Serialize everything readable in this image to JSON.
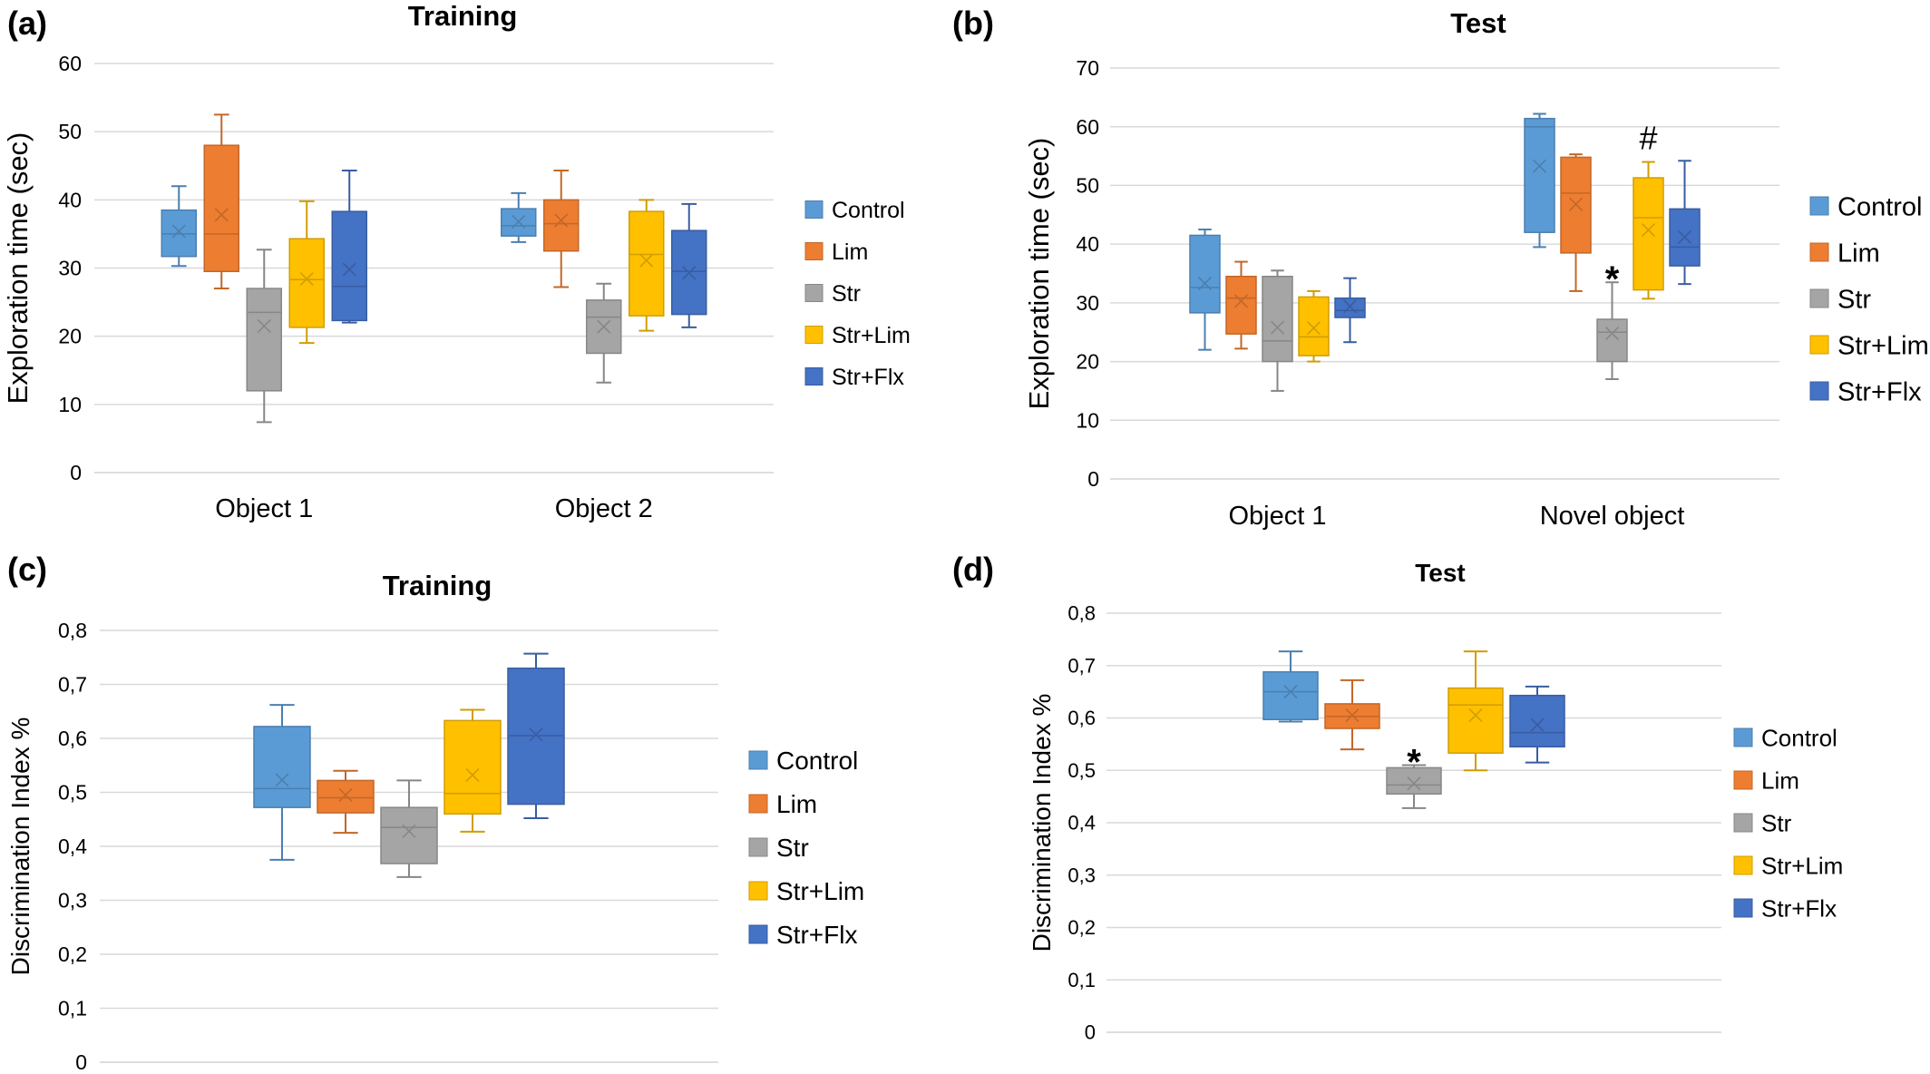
{
  "colors": {
    "Control": "#5b9bd5",
    "Lim": "#ed7d31",
    "Str": "#a5a5a5",
    "Str+Lim": "#ffc000",
    "Str+Flx": "#4472c4"
  },
  "chart_data": [
    {
      "type": "box",
      "panel_label": "(a)",
      "title": "Training",
      "ylabel": "Exploration time (sec)",
      "ylim": [
        0,
        60
      ],
      "yticks": [
        "0",
        "10",
        "20",
        "30",
        "40",
        "50",
        "60"
      ],
      "categories": [
        "Object 1",
        "Object 2"
      ],
      "legend": [
        "Control",
        "Lim",
        "Str",
        "Str+Lim",
        "Str+Flx"
      ],
      "legend_position": "right",
      "series": [
        {
          "name": "Control",
          "boxes": [
            {
              "min": 30.3,
              "q1": 31.7,
              "median": 35.0,
              "q3": 38.5,
              "max": 42.0,
              "mean": 35.4
            },
            {
              "min": 33.8,
              "q1": 34.7,
              "median": 36.2,
              "q3": 38.7,
              "max": 41.0,
              "mean": 36.8
            }
          ]
        },
        {
          "name": "Lim",
          "boxes": [
            {
              "min": 27.0,
              "q1": 29.5,
              "median": 35.0,
              "q3": 48.0,
              "max": 52.5,
              "mean": 37.8
            },
            {
              "min": 27.2,
              "q1": 32.5,
              "median": 36.5,
              "q3": 40.0,
              "max": 44.3,
              "mean": 37.0
            }
          ]
        },
        {
          "name": "Str",
          "boxes": [
            {
              "min": 7.4,
              "q1": 12.0,
              "median": 23.5,
              "q3": 27.0,
              "max": 32.7,
              "mean": 21.5
            },
            {
              "min": 13.2,
              "q1": 17.5,
              "median": 22.8,
              "q3": 25.3,
              "max": 27.7,
              "mean": 21.4
            }
          ]
        },
        {
          "name": "Str+Lim",
          "boxes": [
            {
              "min": 19.0,
              "q1": 21.3,
              "median": 28.3,
              "q3": 34.3,
              "max": 39.8,
              "mean": 28.4
            },
            {
              "min": 20.8,
              "q1": 23.0,
              "median": 32.0,
              "q3": 38.3,
              "max": 40.0,
              "mean": 31.1
            }
          ]
        },
        {
          "name": "Str+Flx",
          "boxes": [
            {
              "min": 22.0,
              "q1": 22.3,
              "median": 27.3,
              "q3": 38.3,
              "max": 44.3,
              "mean": 29.8
            },
            {
              "min": 21.3,
              "q1": 23.2,
              "median": 29.5,
              "q3": 35.5,
              "max": 39.4,
              "mean": 29.3
            }
          ]
        }
      ],
      "annotations": []
    },
    {
      "type": "box",
      "panel_label": "(b)",
      "title": "Test",
      "ylabel": "Exploration time (sec)",
      "ylim": [
        0,
        70
      ],
      "yticks": [
        "0",
        "10",
        "20",
        "30",
        "40",
        "50",
        "60",
        "70"
      ],
      "categories": [
        "Object 1",
        "Novel object"
      ],
      "legend": [
        "Control",
        "Lim",
        "Str",
        "Str+Lim",
        "Str+Flx"
      ],
      "legend_position": "right",
      "series": [
        {
          "name": "Control",
          "boxes": [
            {
              "min": 22.0,
              "q1": 28.3,
              "median": 32.6,
              "q3": 41.5,
              "max": 42.5,
              "mean": 33.3
            },
            {
              "min": 39.5,
              "q1": 42.0,
              "median": 60.0,
              "q3": 61.4,
              "max": 62.2,
              "mean": 53.3
            }
          ]
        },
        {
          "name": "Lim",
          "boxes": [
            {
              "min": 22.2,
              "q1": 24.7,
              "median": 30.8,
              "q3": 34.5,
              "max": 37.0,
              "mean": 30.3
            },
            {
              "min": 32.0,
              "q1": 38.5,
              "median": 48.7,
              "q3": 54.8,
              "max": 55.3,
              "mean": 46.8
            }
          ]
        },
        {
          "name": "Str",
          "boxes": [
            {
              "min": 15.0,
              "q1": 20.0,
              "median": 23.5,
              "q3": 34.5,
              "max": 35.5,
              "mean": 25.8
            },
            {
              "min": 17.0,
              "q1": 20.0,
              "median": 25.0,
              "q3": 27.2,
              "max": 33.5,
              "mean": 24.8
            }
          ]
        },
        {
          "name": "Str+Lim",
          "boxes": [
            {
              "min": 20.0,
              "q1": 21.0,
              "median": 24.2,
              "q3": 31.0,
              "max": 32.0,
              "mean": 25.7
            },
            {
              "min": 30.7,
              "q1": 32.2,
              "median": 44.5,
              "q3": 51.3,
              "max": 54.0,
              "mean": 42.4
            }
          ]
        },
        {
          "name": "Str+Flx",
          "boxes": [
            {
              "min": 23.3,
              "q1": 27.5,
              "median": 28.7,
              "q3": 30.8,
              "max": 34.2,
              "mean": 29.4
            },
            {
              "min": 33.2,
              "q1": 36.3,
              "median": 39.5,
              "q3": 46.0,
              "max": 54.2,
              "mean": 41.2
            }
          ]
        }
      ],
      "annotations": [
        {
          "text": "*",
          "category": 1,
          "series": "Str"
        },
        {
          "text": "#",
          "category": 1,
          "series": "Str+Lim"
        }
      ]
    },
    {
      "type": "box",
      "panel_label": "(c)",
      "title": "Training",
      "ylabel": "Discrimination Index %",
      "ylim": [
        0,
        0.8
      ],
      "yticks": [
        "0",
        "0,1",
        "0,2",
        "0,3",
        "0,4",
        "0,5",
        "0,6",
        "0,7",
        "0,8"
      ],
      "categories": [
        ""
      ],
      "legend": [
        "Control",
        "Lim",
        "Str",
        "Str+Lim",
        "Str+Flx"
      ],
      "legend_position": "right",
      "series": [
        {
          "name": "Control",
          "boxes": [
            {
              "min": 0.375,
              "q1": 0.472,
              "median": 0.507,
              "q3": 0.622,
              "max": 0.662,
              "mean": 0.523
            }
          ]
        },
        {
          "name": "Lim",
          "boxes": [
            {
              "min": 0.425,
              "q1": 0.462,
              "median": 0.49,
              "q3": 0.522,
              "max": 0.54,
              "mean": 0.495
            }
          ]
        },
        {
          "name": "Str",
          "boxes": [
            {
              "min": 0.343,
              "q1": 0.368,
              "median": 0.435,
              "q3": 0.472,
              "max": 0.522,
              "mean": 0.428
            }
          ]
        },
        {
          "name": "Str+Lim",
          "boxes": [
            {
              "min": 0.427,
              "q1": 0.46,
              "median": 0.498,
              "q3": 0.633,
              "max": 0.653,
              "mean": 0.532
            }
          ]
        },
        {
          "name": "Str+Flx",
          "boxes": [
            {
              "min": 0.452,
              "q1": 0.478,
              "median": 0.605,
              "q3": 0.73,
              "max": 0.757,
              "mean": 0.607
            }
          ]
        }
      ],
      "annotations": []
    },
    {
      "type": "box",
      "panel_label": "(d)",
      "title": "Test",
      "ylabel": "Discrimination Index %",
      "ylim": [
        0,
        0.8
      ],
      "yticks": [
        "0",
        "0,1",
        "0,2",
        "0,3",
        "0,4",
        "0,5",
        "0,6",
        "0,7",
        "0,8"
      ],
      "categories": [
        ""
      ],
      "legend": [
        "Control",
        "Lim",
        "Str",
        "Str+Lim",
        "Str+Flx"
      ],
      "legend_position": "right",
      "series": [
        {
          "name": "Control",
          "boxes": [
            {
              "min": 0.593,
              "q1": 0.597,
              "median": 0.65,
              "q3": 0.688,
              "max": 0.727,
              "mean": 0.65
            }
          ]
        },
        {
          "name": "Lim",
          "boxes": [
            {
              "min": 0.54,
              "q1": 0.58,
              "median": 0.603,
              "q3": 0.627,
              "max": 0.672,
              "mean": 0.605
            }
          ]
        },
        {
          "name": "Str",
          "boxes": [
            {
              "min": 0.428,
              "q1": 0.455,
              "median": 0.472,
              "q3": 0.505,
              "max": 0.51,
              "mean": 0.475
            }
          ]
        },
        {
          "name": "Str+Lim",
          "boxes": [
            {
              "min": 0.5,
              "q1": 0.533,
              "median": 0.625,
              "q3": 0.657,
              "max": 0.727,
              "mean": 0.605
            }
          ]
        },
        {
          "name": "Str+Flx",
          "boxes": [
            {
              "min": 0.515,
              "q1": 0.545,
              "median": 0.572,
              "q3": 0.643,
              "max": 0.66,
              "mean": 0.587
            }
          ]
        }
      ],
      "annotations": [
        {
          "text": "*",
          "category": 0,
          "series": "Str"
        }
      ]
    }
  ]
}
